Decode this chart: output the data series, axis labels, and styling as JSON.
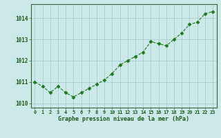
{
  "hours": [
    0,
    1,
    2,
    3,
    4,
    5,
    6,
    7,
    8,
    9,
    10,
    11,
    12,
    13,
    14,
    15,
    16,
    17,
    18,
    19,
    20,
    21,
    22,
    23
  ],
  "pressure": [
    1011.0,
    1010.8,
    1010.5,
    1010.8,
    1010.5,
    1010.3,
    1010.5,
    1010.7,
    1010.9,
    1011.1,
    1011.4,
    1011.8,
    1012.0,
    1012.2,
    1012.4,
    1012.9,
    1012.8,
    1012.7,
    1013.0,
    1013.3,
    1013.7,
    1013.8,
    1014.2,
    1014.3
  ],
  "line_color": "#1a7a1a",
  "marker_color": "#1a7a1a",
  "bg_color": "#cce8e8",
  "grid_color": "#99cccc",
  "xlabel": "Graphe pression niveau de la mer (hPa)",
  "xlabel_color": "#1a5c1a",
  "tick_label_color": "#1a5c1a",
  "ylim": [
    1009.8,
    1014.65
  ],
  "yticks": [
    1010,
    1011,
    1012,
    1013,
    1014
  ],
  "title": ""
}
